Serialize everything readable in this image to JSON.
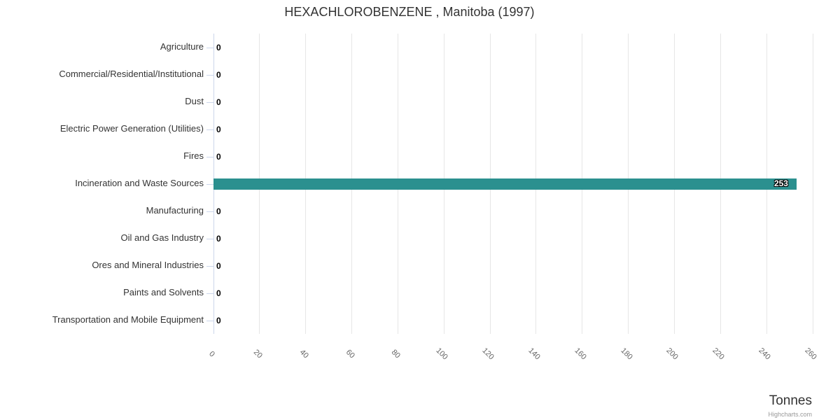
{
  "chart_data": {
    "type": "bar",
    "orientation": "horizontal",
    "title": "HEXACHLOROBENZENE , Manitoba (1997)",
    "categories": [
      "Agriculture",
      "Commercial/Residential/Institutional",
      "Dust",
      "Electric Power Generation (Utilities)",
      "Fires",
      "Incineration and Waste Sources",
      "Manufacturing",
      "Oil and Gas Industry",
      "Ores and Mineral Industries",
      "Paints and Solvents",
      "Transportation and Mobile Equipment"
    ],
    "values": [
      0,
      0,
      0,
      0,
      0,
      253,
      0,
      0,
      0,
      0,
      0
    ],
    "xlabel": "Tonnes",
    "ylabel": "",
    "xlim": [
      0,
      260
    ],
    "xticks": [
      0,
      20,
      40,
      60,
      80,
      100,
      120,
      140,
      160,
      180,
      200,
      220,
      240,
      260
    ],
    "grid": true,
    "legend": "none",
    "colors": {
      "bar": "#2b908f",
      "gridline": "#e6e6e6",
      "axis_line": "#ccd6eb",
      "title_text": "#333333",
      "category_text": "#333333",
      "tick_text": "#666666",
      "zero_label_text": "#000000",
      "bar_label_text": "#ffffff"
    }
  },
  "credits": "Highcharts.com"
}
